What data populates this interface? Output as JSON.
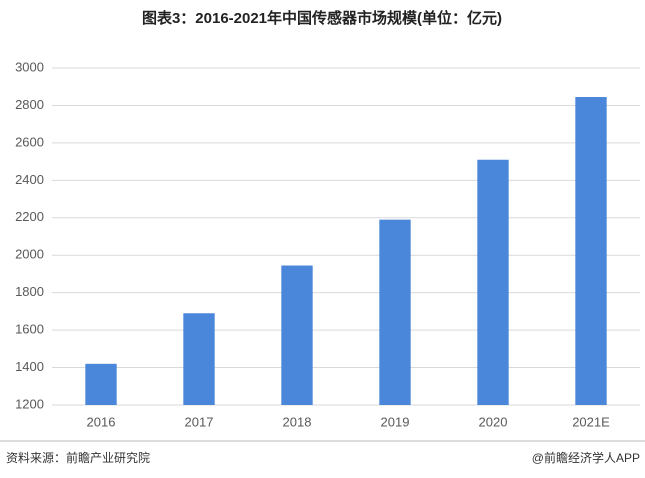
{
  "chart_data": {
    "type": "bar",
    "title": "图表3：2016-2021年中国传感器市场规模(单位：亿元)",
    "categories": [
      "2016",
      "2017",
      "2018",
      "2019",
      "2020",
      "2021E"
    ],
    "values": [
      1420,
      1690,
      1945,
      2190,
      2510,
      2845
    ],
    "color": "#4a86d9",
    "ylim": [
      1200,
      3000
    ],
    "yticks": [
      1200,
      1400,
      1600,
      1800,
      2000,
      2200,
      2400,
      2600,
      2800,
      3000
    ],
    "grid": true,
    "source": "资料来源：前瞻产业研究院",
    "credit": "@前瞻经济学人APP"
  }
}
